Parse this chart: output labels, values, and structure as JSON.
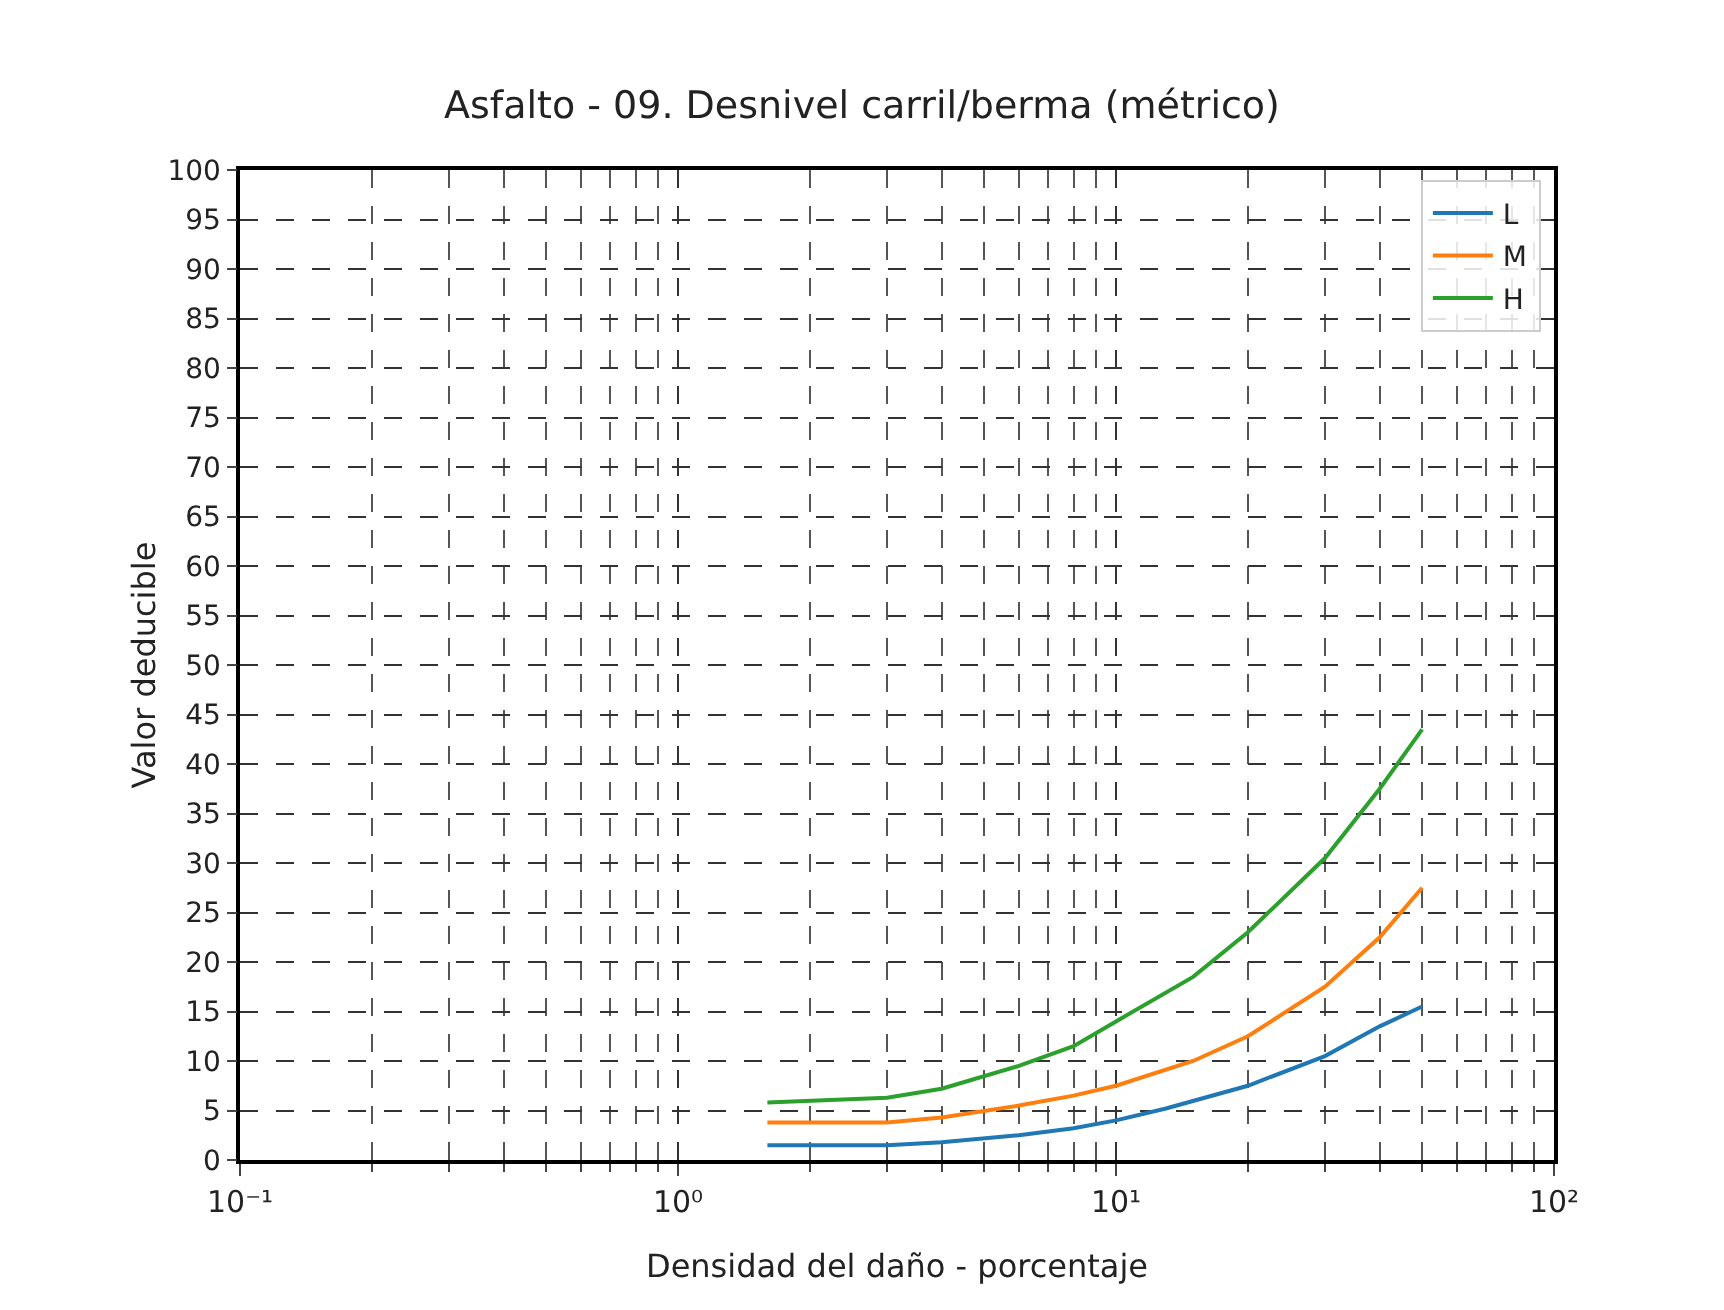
{
  "chart_data": {
    "type": "line",
    "title": "Asfalto - 09. Desnivel carril/berma (métrico)",
    "xlabel": "Densidad del daño - porcentaje",
    "ylabel": "Valor deducible",
    "log": "x",
    "grid": true,
    "legend": "top right",
    "line_style": "solid",
    "marker": "none",
    "xlim": [
      0.1,
      100
    ],
    "xticks": [
      {
        "value": 0.1,
        "label": "10⁻¹"
      },
      {
        "value": 1,
        "label": "10⁰"
      },
      {
        "value": 10,
        "label": "10¹"
      },
      {
        "value": 100,
        "label": "10²"
      }
    ],
    "ylim": [
      0,
      100
    ],
    "yticks": [
      0,
      5,
      10,
      15,
      20,
      25,
      30,
      35,
      40,
      45,
      50,
      55,
      60,
      65,
      70,
      75,
      80,
      85,
      90,
      95,
      100
    ],
    "series": [
      {
        "name": "L",
        "color": "#1f77b4",
        "x": [
          1.6,
          3,
          4,
          6,
          8,
          10,
          13,
          20,
          30,
          40,
          50
        ],
        "values": [
          1.5,
          1.5,
          1.8,
          2.5,
          3.2,
          4,
          5.2,
          7.5,
          10.5,
          13.5,
          15.5
        ]
      },
      {
        "name": "M",
        "color": "#ff7f0e",
        "x": [
          1.6,
          3,
          4,
          6,
          8,
          10,
          15,
          20,
          30,
          40,
          50
        ],
        "values": [
          3.8,
          3.8,
          4.3,
          5.5,
          6.5,
          7.5,
          10,
          12.5,
          17.5,
          22.5,
          27.5
        ]
      },
      {
        "name": "H",
        "color": "#2ca02c",
        "x": [
          1.6,
          3,
          4,
          6,
          8,
          10,
          15,
          20,
          30,
          40,
          50
        ],
        "values": [
          5.8,
          6.3,
          7.2,
          9.5,
          11.5,
          14,
          18.5,
          23,
          30.5,
          37.5,
          43.5
        ]
      }
    ]
  }
}
